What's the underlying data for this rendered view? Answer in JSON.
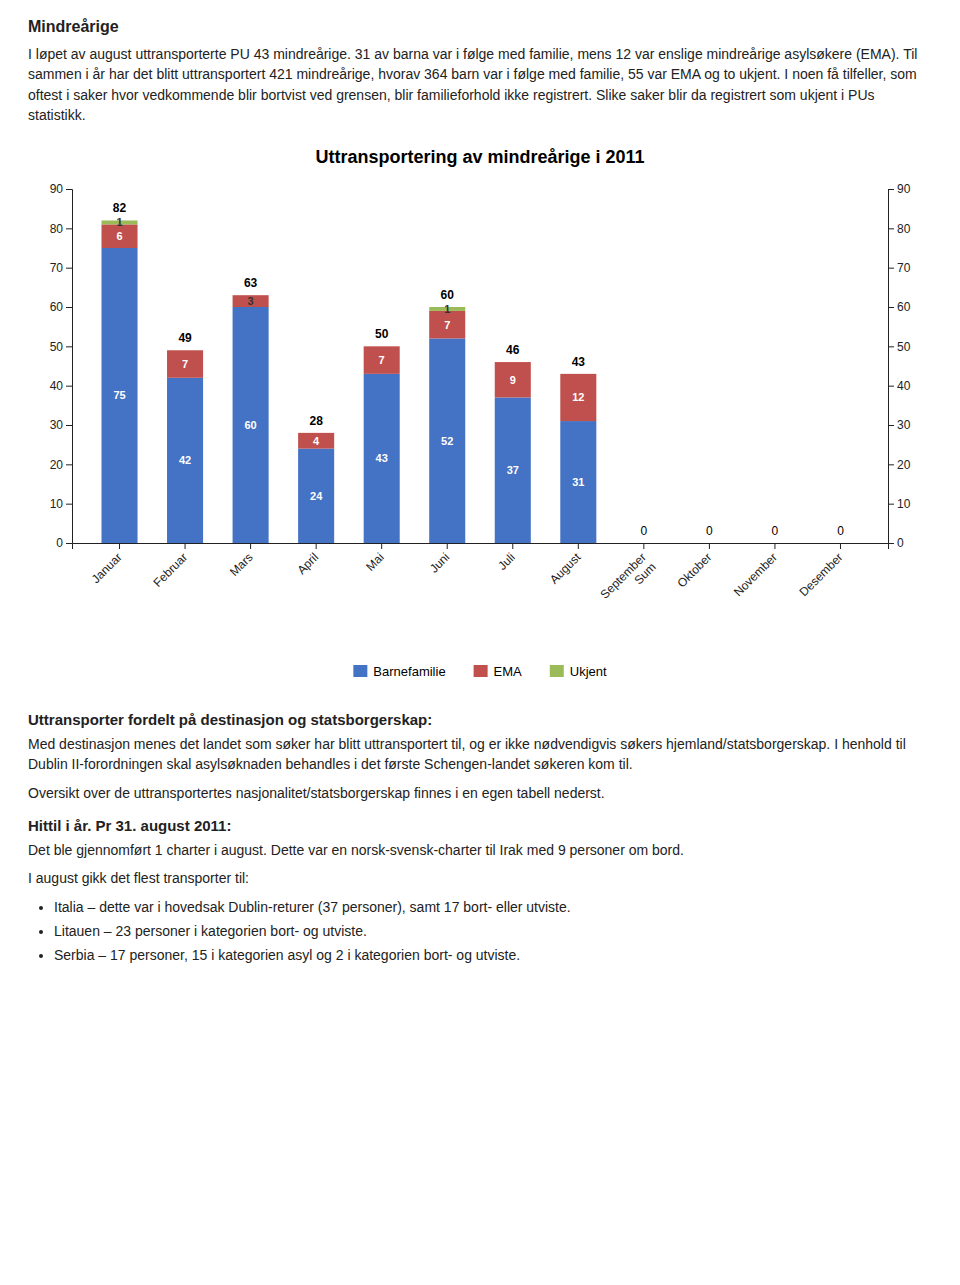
{
  "chart_data": {
    "type": "bar",
    "title": "Uttransportering av mindreårige i 2011",
    "categories": [
      "Januar",
      "Februar",
      "Mars",
      "April",
      "Mai",
      "Juni",
      "Juli",
      "August",
      "September\nSum",
      "Oktober",
      "November",
      "Desember"
    ],
    "series": [
      {
        "name": "Barnefamilie",
        "color": "#4472C4",
        "values": [
          75,
          42,
          60,
          24,
          43,
          52,
          37,
          31,
          0,
          0,
          0,
          0
        ]
      },
      {
        "name": "EMA",
        "color": "#C0504D",
        "values": [
          6,
          7,
          3,
          4,
          7,
          7,
          9,
          12,
          0,
          0,
          0,
          0
        ]
      },
      {
        "name": "Ukjent",
        "color": "#9BBB59",
        "values": [
          1,
          0,
          0,
          0,
          0,
          1,
          0,
          0,
          0,
          0,
          0,
          0
        ]
      }
    ],
    "totals": [
      82,
      49,
      63,
      28,
      50,
      60,
      46,
      43,
      0,
      0,
      0,
      0
    ],
    "stacked": true,
    "data_labels": true,
    "ylim": [
      0,
      90
    ],
    "yticks": [
      0,
      10,
      20,
      30,
      40,
      50,
      60,
      70,
      80,
      90
    ],
    "y2lim": [
      0,
      90
    ],
    "y2ticks": [
      0,
      10,
      20,
      30,
      40,
      50,
      60,
      70,
      80,
      90
    ],
    "grid": false,
    "legend": "bottom"
  },
  "page_text": {
    "title": "Mindreårige",
    "body": "I løpet av august uttransporterte PU 43 mindreårige. 31 av barna var i følge med familie, mens 12 var enslige mindreårige asylsøkere (EMA). Til sammen i år har det blitt uttransportert 421 mindreårige, hvorav 364 barn var i følge med familie, 55 var EMA og to ukjent. I noen få tilfeller, som oftest i saker hvor vedkommende blir bortvist ved grensen, blir familieforhold ikke registrert. Slike saker blir da registrert som ukjent i PUs statistikk.",
    "section2_title": "Uttransporter fordelt på destinasjon og statsborgerskap:",
    "section2_body": "Med destinasjon menes det landet som søker har blitt uttransportert til, og er ikke nødvendigvis søkers hjemland/statsborgerskap. I henhold til Dublin II-forordningen skal asylsøknaden behandles i det første Schengen-landet søkeren kom til.",
    "section2_body2": "Oversikt over de uttransportertes nasjonalitet/statsborgerskap finnes i en egen tabell nederst.",
    "section3_title": "Hittil i år. Pr 31. august 2011:",
    "section3_body": "Det ble gjennomført 1 charter i august. Dette var en norsk-svensk-charter til Irak med 9 personer om bord.",
    "section3_body2": "I august gikk det flest transporter til:",
    "bullets": [
      "Italia – dette var i hovedsak Dublin-returer (37 personer), samt 17 bort- eller utviste.",
      "Litauen – 23 personer i kategorien bort- og utviste.",
      "Serbia – 17 personer, 15 i kategorien asyl og 2 i kategorien bort- og utviste."
    ]
  }
}
